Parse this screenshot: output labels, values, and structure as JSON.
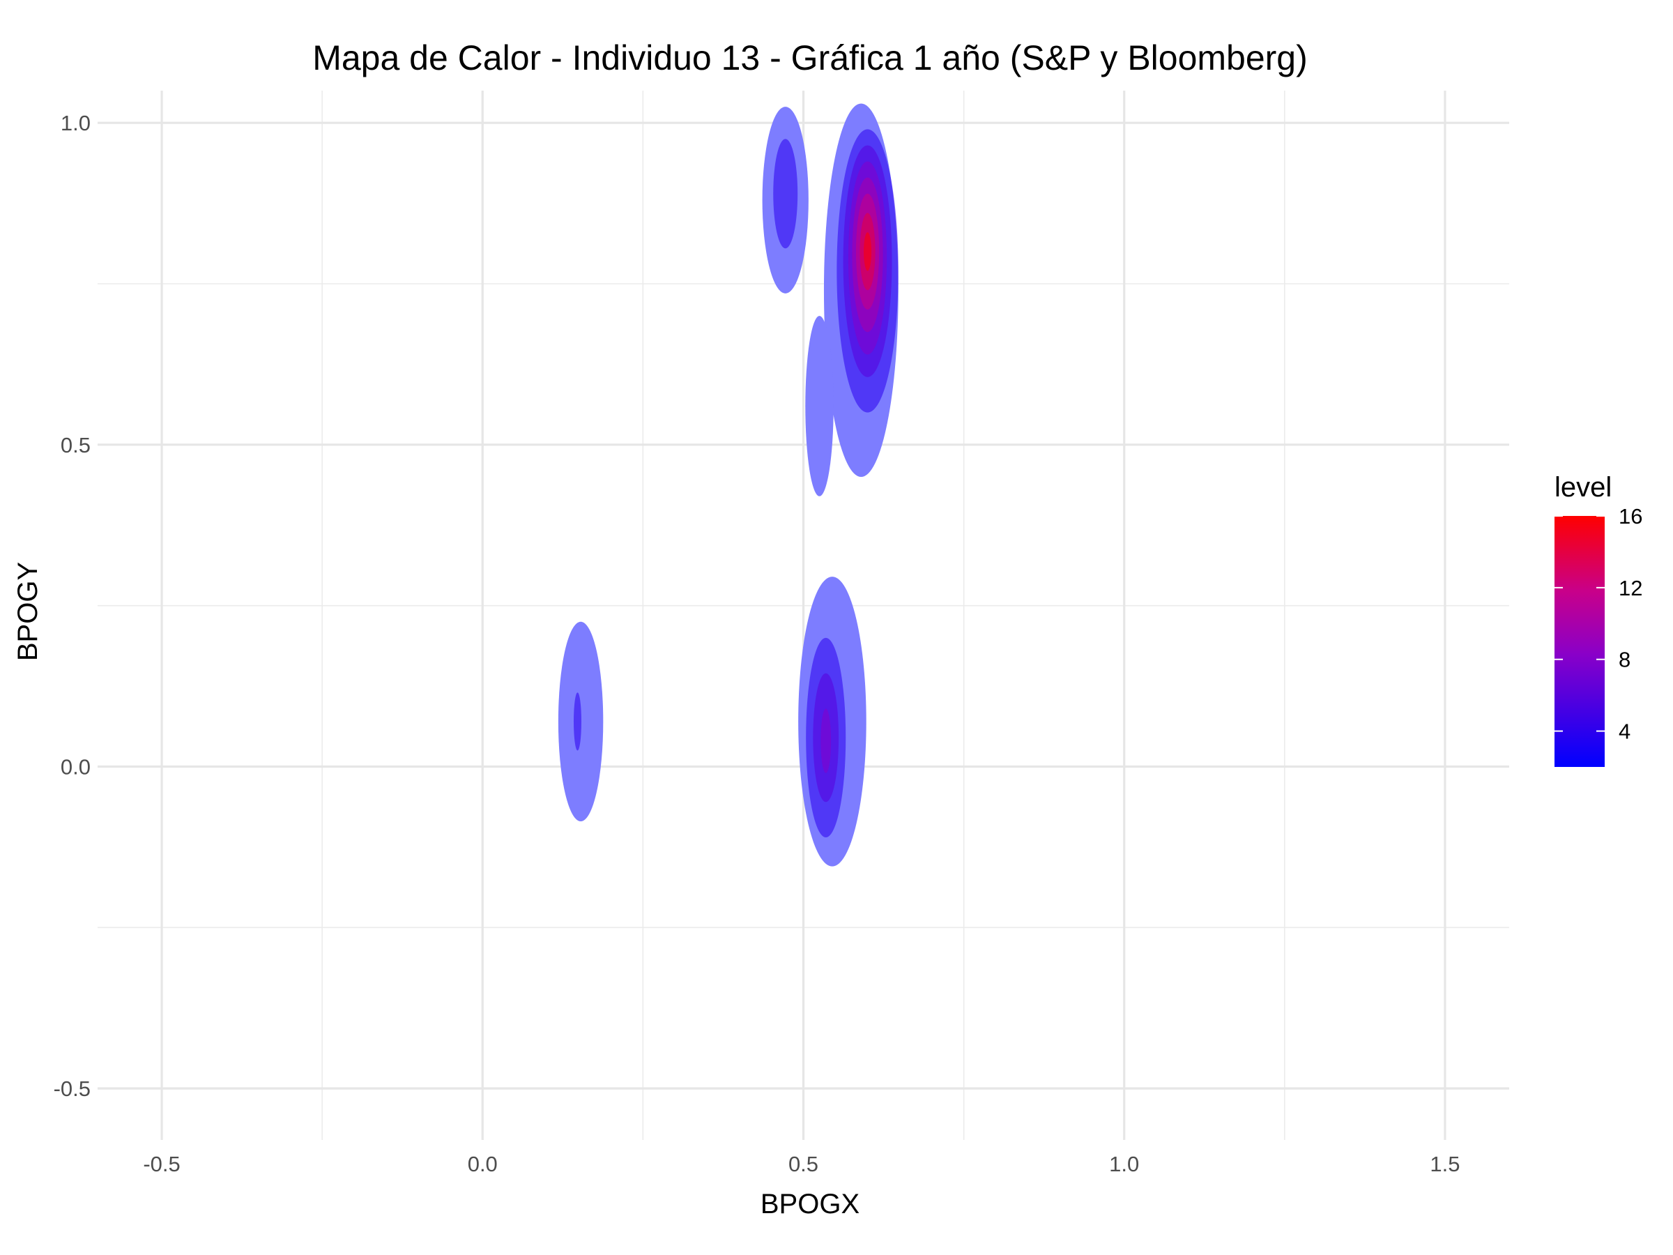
{
  "chart_data": {
    "type": "heatmap",
    "subtype": "2d-density-filled-contours",
    "title": "Mapa de Calor - Individuo 13 - Gráfica 1 año (S&P y Bloomberg)",
    "xlabel": "BPOGX",
    "ylabel": "BPOGY",
    "xlim": [
      -0.6,
      1.6
    ],
    "ylim": [
      -0.58,
      1.05
    ],
    "x_ticks": [
      "-0.5",
      "0.0",
      "0.5",
      "1.0",
      "1.5"
    ],
    "y_ticks": [
      "-0.5",
      "0.0",
      "0.5",
      "1.0"
    ],
    "grid": true,
    "legend": {
      "title": "level",
      "position": "right",
      "range": [
        2,
        16
      ],
      "ticks": [
        "4",
        "8",
        "12",
        "16"
      ],
      "color_low": "#0000ff",
      "color_high": "#ff0000"
    },
    "clusters": [
      {
        "name": "upper-left",
        "rings": [
          {
            "level": 2,
            "cx": 0.472,
            "cy": 0.88,
            "rx": 0.036,
            "ry": 0.145
          },
          {
            "level": 4,
            "cx": 0.472,
            "cy": 0.89,
            "rx": 0.019,
            "ry": 0.085
          }
        ]
      },
      {
        "name": "upper-main",
        "rings": [
          {
            "level": 2,
            "cx": 0.59,
            "cy": 0.74,
            "rx": 0.058,
            "ry": 0.29
          },
          {
            "level": 4,
            "cx": 0.6,
            "cy": 0.77,
            "rx": 0.048,
            "ry": 0.22
          },
          {
            "level": 6,
            "cx": 0.6,
            "cy": 0.785,
            "rx": 0.038,
            "ry": 0.18
          },
          {
            "level": 8,
            "cx": 0.6,
            "cy": 0.79,
            "rx": 0.03,
            "ry": 0.15
          },
          {
            "level": 10,
            "cx": 0.6,
            "cy": 0.795,
            "rx": 0.024,
            "ry": 0.12
          },
          {
            "level": 12,
            "cx": 0.6,
            "cy": 0.8,
            "rx": 0.018,
            "ry": 0.09
          },
          {
            "level": 14,
            "cx": 0.6,
            "cy": 0.8,
            "rx": 0.012,
            "ry": 0.06
          },
          {
            "level": 16,
            "cx": 0.6,
            "cy": 0.8,
            "rx": 0.006,
            "ry": 0.03
          }
        ]
      },
      {
        "name": "tail",
        "rings": [
          {
            "level": 2,
            "cx": 0.525,
            "cy": 0.56,
            "rx": 0.022,
            "ry": 0.14
          }
        ]
      },
      {
        "name": "lower-left",
        "rings": [
          {
            "level": 2,
            "cx": 0.153,
            "cy": 0.07,
            "rx": 0.035,
            "ry": 0.155
          },
          {
            "level": 4,
            "cx": 0.148,
            "cy": 0.07,
            "rx": 0.006,
            "ry": 0.045
          }
        ]
      },
      {
        "name": "lower-main",
        "rings": [
          {
            "level": 2,
            "cx": 0.545,
            "cy": 0.07,
            "rx": 0.053,
            "ry": 0.225
          },
          {
            "level": 4,
            "cx": 0.535,
            "cy": 0.045,
            "rx": 0.031,
            "ry": 0.155
          },
          {
            "level": 6,
            "cx": 0.535,
            "cy": 0.045,
            "rx": 0.02,
            "ry": 0.1
          },
          {
            "level": 8,
            "cx": 0.535,
            "cy": 0.04,
            "rx": 0.008,
            "ry": 0.05
          }
        ]
      }
    ]
  }
}
